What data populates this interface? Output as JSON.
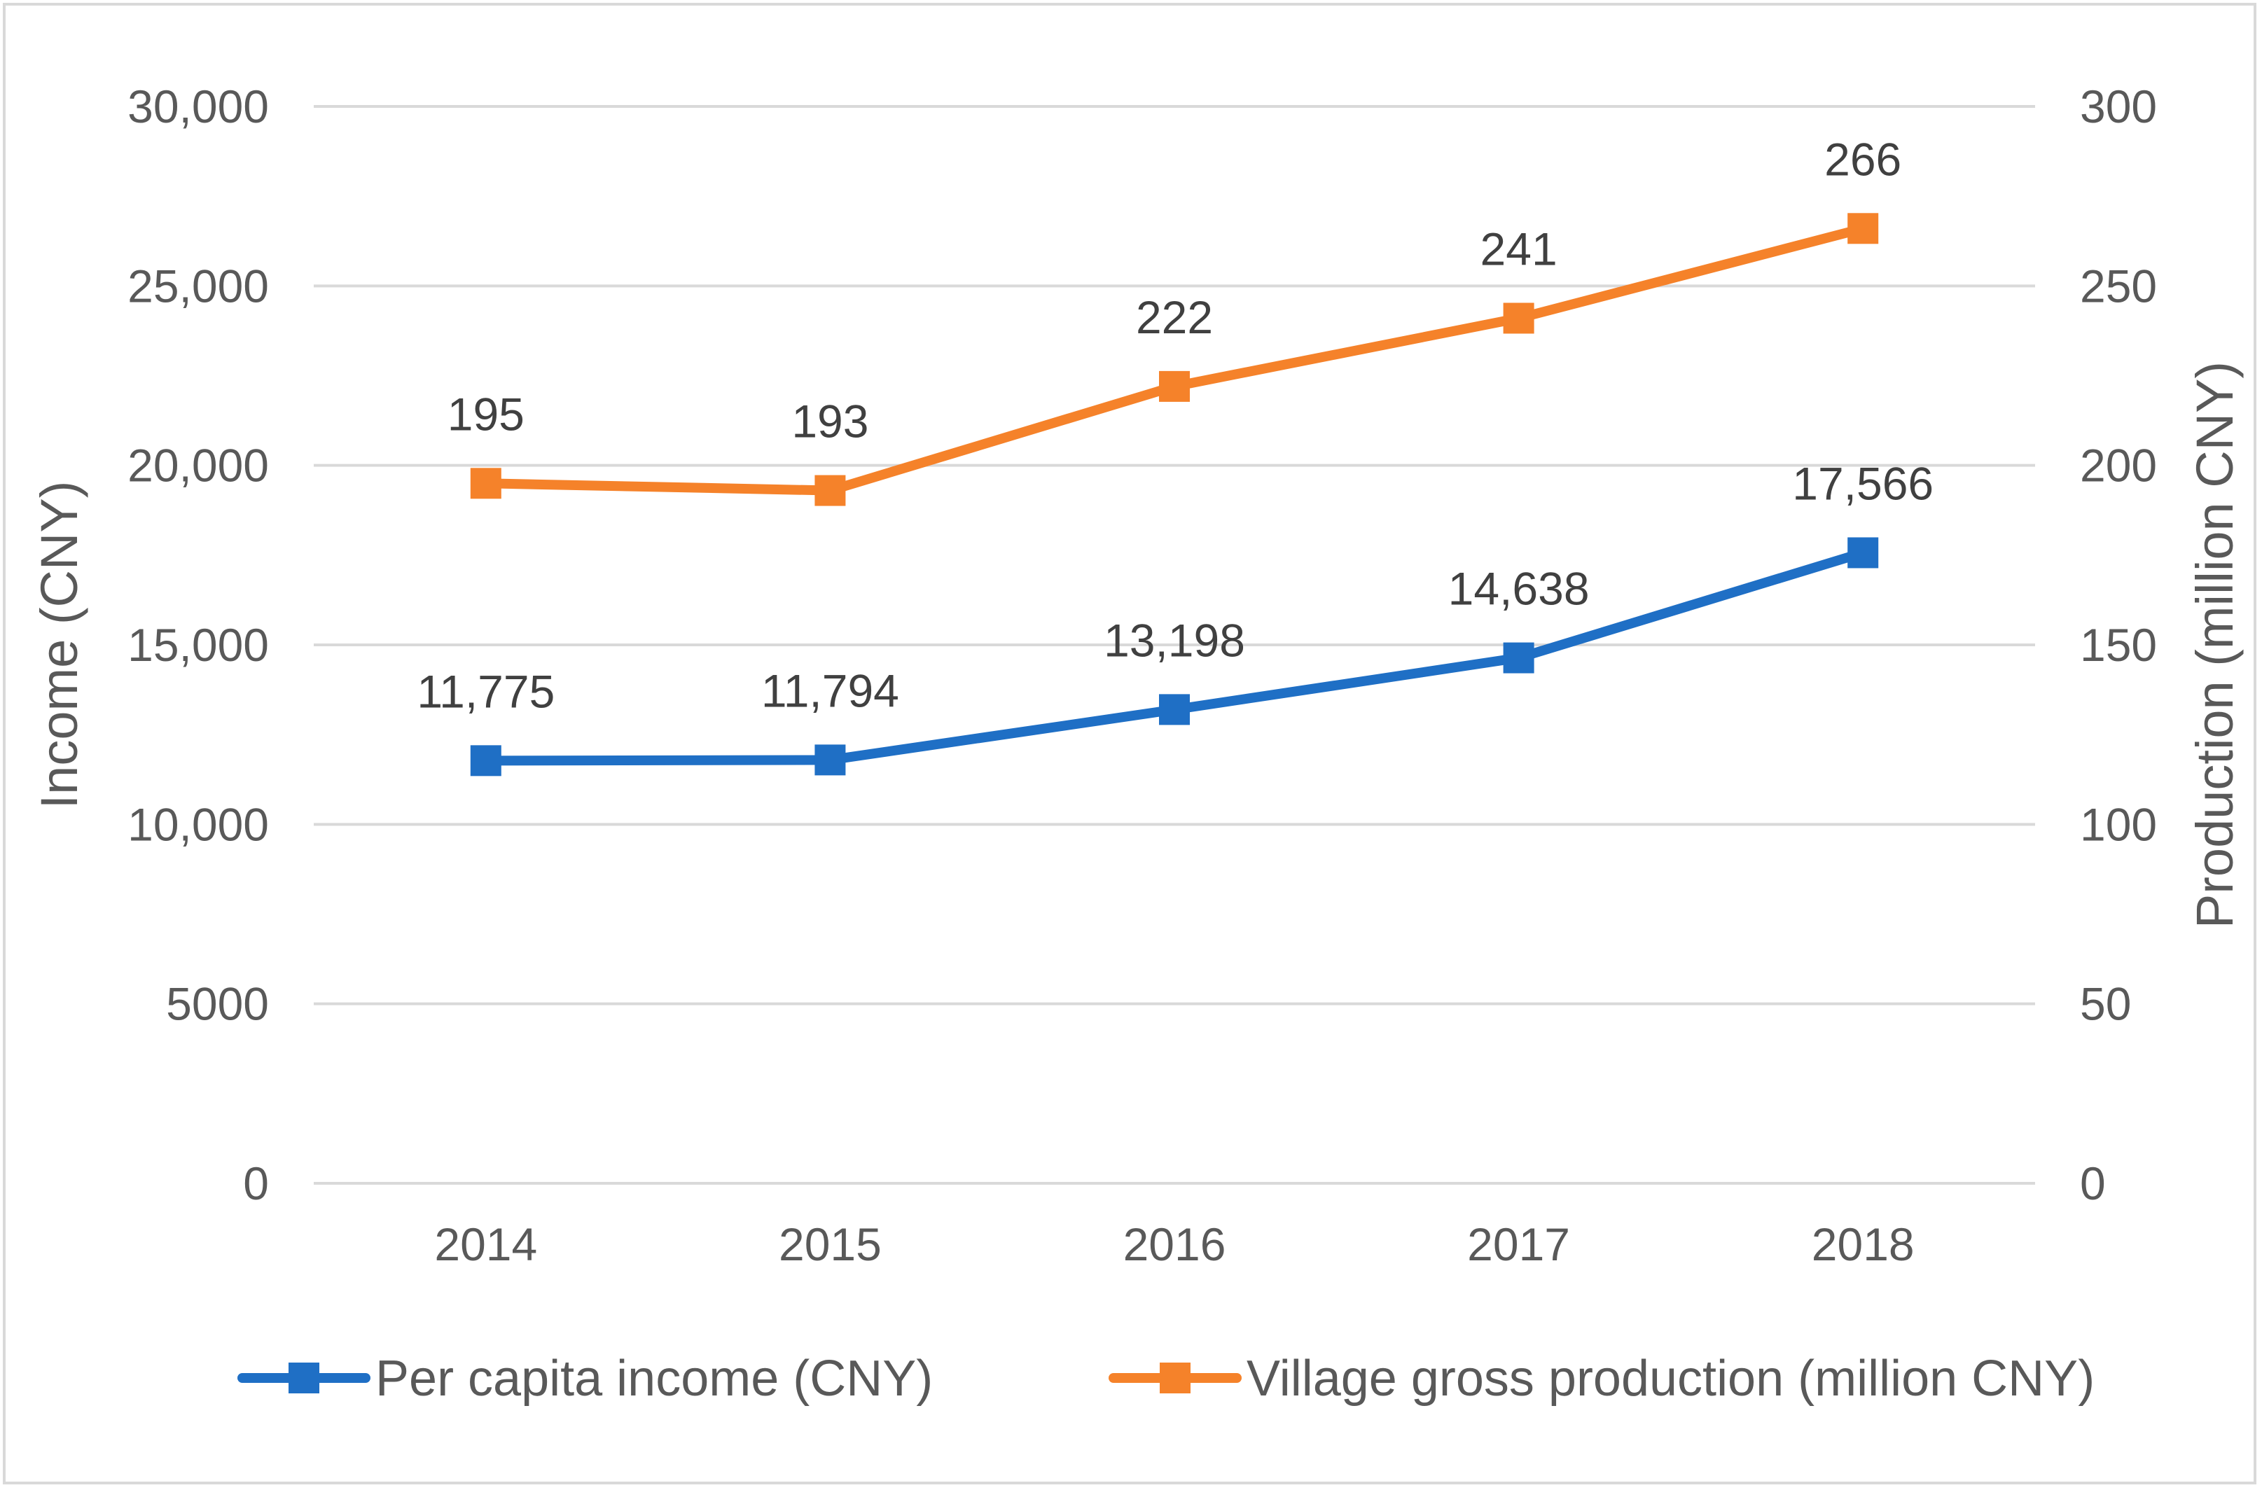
{
  "chart_data": {
    "type": "line",
    "categories": [
      "2014",
      "2015",
      "2016",
      "2017",
      "2018"
    ],
    "y_left": {
      "label": "Income (CNY)",
      "range": [
        0,
        30000
      ],
      "ticks": [
        0,
        5000,
        10000,
        15000,
        20000,
        25000,
        30000
      ],
      "tick_labels": [
        "0",
        "5000",
        "10,000",
        "15,000",
        "20,000",
        "25,000",
        "30,000"
      ]
    },
    "y_right": {
      "label": "Production (million CNY)",
      "range": [
        0,
        300
      ],
      "ticks": [
        0,
        50,
        100,
        150,
        200,
        250,
        300
      ],
      "tick_labels": [
        "0",
        "50",
        "100",
        "150",
        "200",
        "250",
        "300"
      ]
    },
    "grid": true,
    "legend_position": "bottom",
    "series": [
      {
        "name": "Per capita income (CNY)",
        "axis": "left",
        "color": "#1f6fc5",
        "marker": "square",
        "values": [
          11775,
          11794,
          13198,
          14638,
          17566
        ],
        "labels": [
          "11,775",
          "11,794",
          "13,198",
          "14,638",
          "17,566"
        ]
      },
      {
        "name": "Village gross production (million CNY)",
        "axis": "right",
        "color": "#f5822a",
        "marker": "square",
        "values": [
          195,
          193,
          222,
          241,
          266
        ],
        "labels": [
          "195",
          "193",
          "222",
          "241",
          "266"
        ]
      }
    ]
  }
}
